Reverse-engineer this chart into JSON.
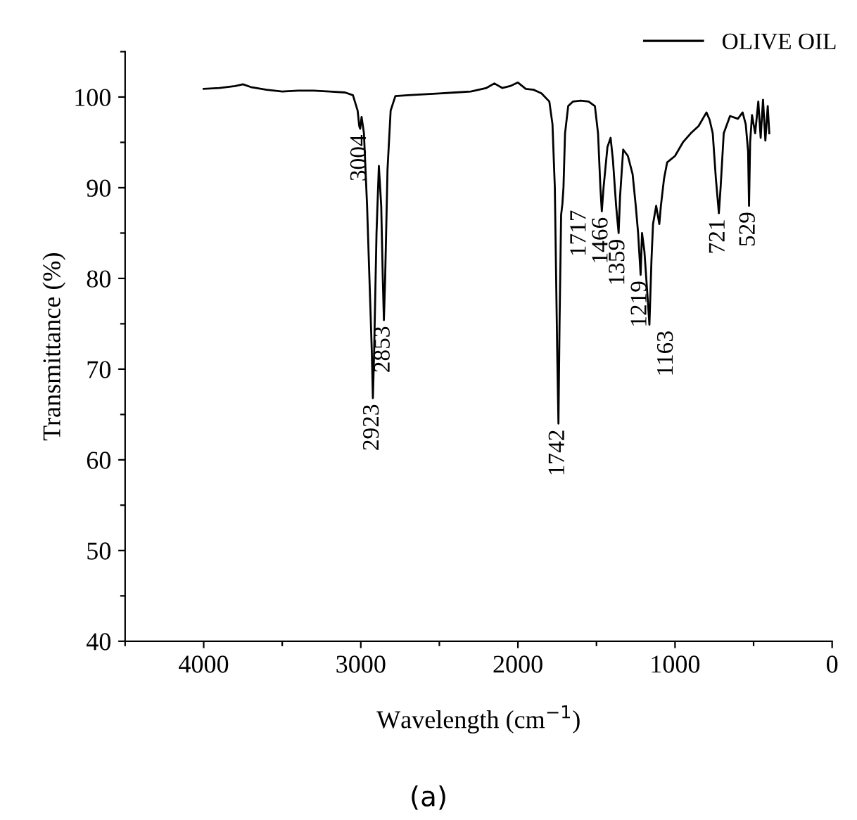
{
  "chart_data": {
    "type": "line",
    "xlabel": "Wavelength (cm$^{−1}$)",
    "ylabel": "Transmittance (%)",
    "xlim": [
      4500,
      0
    ],
    "xticks": [
      {
        "value": 4500,
        "label": null
      },
      4000,
      {
        "value": 3500,
        "label": null
      },
      3000,
      {
        "value": 2500,
        "label": null
      },
      2000,
      {
        "value": 1500,
        "label": null
      },
      1000,
      {
        "value": 500,
        "label": null
      },
      0
    ],
    "ylim": [
      40,
      105
    ],
    "yticks": [
      40,
      {
        "value": 45,
        "label": null
      },
      50,
      {
        "value": 55,
        "label": null
      },
      60,
      {
        "value": 65,
        "label": null
      },
      70,
      {
        "value": 75,
        "label": null
      },
      80,
      {
        "value": 85,
        "label": null
      },
      90,
      {
        "value": 95,
        "label": null
      },
      100,
      {
        "value": 105,
        "label": null
      }
    ],
    "grid": false,
    "legend": "top right",
    "marker": "none",
    "line_style": "solid",
    "series": [
      {
        "name": "OLIVE OIL",
        "color": "#000000",
        "x": [
          4000,
          3900,
          3800,
          3750,
          3700,
          3600,
          3500,
          3400,
          3300,
          3200,
          3100,
          3050,
          3020,
          3010,
          3004,
          2995,
          2980,
          2960,
          2945,
          2930,
          2923,
          2915,
          2900,
          2885,
          2870,
          2860,
          2853,
          2845,
          2830,
          2810,
          2780,
          2700,
          2600,
          2500,
          2400,
          2300,
          2200,
          2150,
          2100,
          2050,
          2000,
          1950,
          1900,
          1850,
          1800,
          1780,
          1765,
          1750,
          1742,
          1735,
          1725,
          1717,
          1710,
          1700,
          1680,
          1650,
          1600,
          1550,
          1510,
          1490,
          1475,
          1466,
          1455,
          1430,
          1410,
          1395,
          1375,
          1359,
          1350,
          1330,
          1300,
          1270,
          1250,
          1235,
          1219,
          1210,
          1195,
          1175,
          1163,
          1150,
          1140,
          1120,
          1100,
          1090,
          1070,
          1050,
          1000,
          950,
          900,
          850,
          800,
          780,
          760,
          740,
          721,
          710,
          690,
          650,
          600,
          570,
          550,
          535,
          529,
          522,
          510,
          490,
          470,
          455,
          440,
          425,
          410,
          400
        ],
        "values": [
          100.9,
          101.0,
          101.2,
          101.4,
          101.1,
          100.8,
          100.6,
          100.7,
          100.7,
          100.6,
          100.5,
          100.2,
          98.5,
          96.8,
          96.5,
          97.8,
          96.0,
          88,
          80,
          72,
          66.8,
          72,
          85,
          92.4,
          88,
          80,
          75.4,
          80,
          92,
          98.5,
          100.1,
          100.2,
          100.3,
          100.4,
          100.5,
          100.6,
          101.0,
          101.5,
          101.0,
          101.2,
          101.6,
          100.9,
          100.8,
          100.4,
          99.5,
          97,
          90,
          72,
          64.0,
          75,
          87,
          88.2,
          90,
          96,
          99.0,
          99.5,
          99.6,
          99.5,
          99.0,
          96,
          90,
          87.4,
          90,
          94.5,
          95.5,
          93,
          88,
          85,
          89,
          94.2,
          93.5,
          91.5,
          88,
          85,
          80.4,
          85,
          83,
          78,
          74.9,
          82,
          86,
          88,
          86,
          88,
          91,
          92.8,
          93.5,
          95,
          96.0,
          96.8,
          98.3,
          97.5,
          96,
          91,
          87.2,
          90,
          96,
          97.9,
          97.6,
          98.3,
          97,
          94,
          88,
          95,
          98,
          96,
          99.5,
          95.5,
          99.7,
          95.2,
          99,
          96
        ]
      }
    ],
    "annotations": [
      {
        "text": "3004",
        "x": 3004,
        "y": 96.5
      },
      {
        "text": "2923",
        "x": 2923,
        "y": 66.8
      },
      {
        "text": "2853",
        "x": 2853,
        "y": 75.4
      },
      {
        "text": "1742",
        "x": 1742,
        "y": 64.0
      },
      {
        "text": "1717",
        "x": 1717,
        "y": 88.2
      },
      {
        "text": "1466",
        "x": 1466,
        "y": 87.4
      },
      {
        "text": "1359",
        "x": 1359,
        "y": 85
      },
      {
        "text": "1219",
        "x": 1219,
        "y": 80.4
      },
      {
        "text": "1163",
        "x": 1163,
        "y": 74.9
      },
      {
        "text": "721",
        "x": 721,
        "y": 87.2
      },
      {
        "text": "529",
        "x": 529,
        "y": 88
      },
      "(a)"
    ]
  }
}
